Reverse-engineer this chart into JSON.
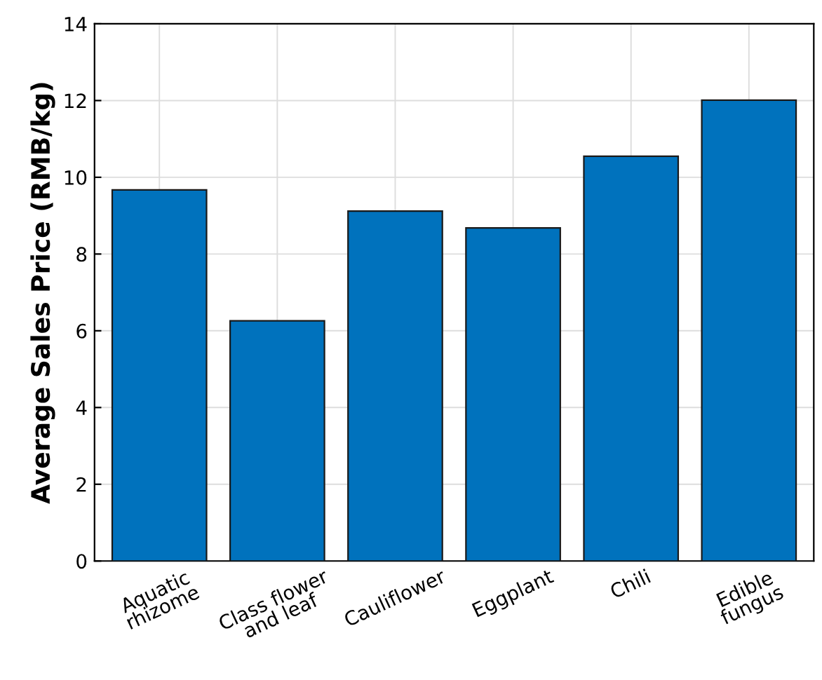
{
  "chart_data": {
    "type": "bar",
    "ylabel": "Average Sales Price (RMB/kg)",
    "categories": [
      "Aquatic\nrhizome",
      "Class flower\nand leaf",
      "Cauliflower",
      "Eggplant",
      "Chili",
      "Edible\nfungus"
    ],
    "values": [
      9.67,
      6.26,
      9.12,
      8.68,
      10.55,
      12.01
    ],
    "color": "#0072bd",
    "ylim": [
      0,
      14
    ],
    "yticks": [
      0,
      2,
      4,
      6,
      8,
      10,
      12,
      14
    ],
    "grid": true
  }
}
